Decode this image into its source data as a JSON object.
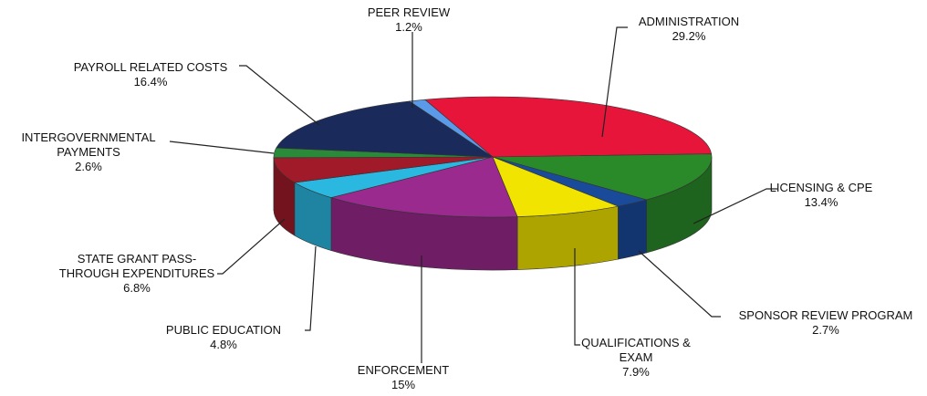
{
  "chart_data": {
    "type": "pie",
    "categories": [
      "ADMINISTRATION",
      "LICENSING & CPE",
      "SPONSOR REVIEW PROGRAM",
      "QUALIFICATIONS & EXAM",
      "ENFORCEMENT",
      "PUBLIC EDUCATION",
      "STATE GRANT PASS-THROUGH EXPENDITURES",
      "INTERGOVERNMENTAL PAYMENTS",
      "PAYROLL RELATED COSTS",
      "PEER REVIEW"
    ],
    "values": [
      29.2,
      13.4,
      2.7,
      7.9,
      15,
      4.8,
      6.8,
      2.6,
      16.4,
      1.2
    ],
    "value_labels": [
      "29.2%",
      "13.4%",
      "2.7%",
      "7.9%",
      "15%",
      "4.8%",
      "6.8%",
      "2.6%",
      "16.4%",
      "1.2%"
    ],
    "colors": [
      "#e8153a",
      "#2a8a2a",
      "#1a4a9a",
      "#f0e400",
      "#9a2a8e",
      "#2ab8e0",
      "#a01a2a",
      "#2a8a3a",
      "#1a2a5a",
      "#5a9ae8"
    ]
  }
}
